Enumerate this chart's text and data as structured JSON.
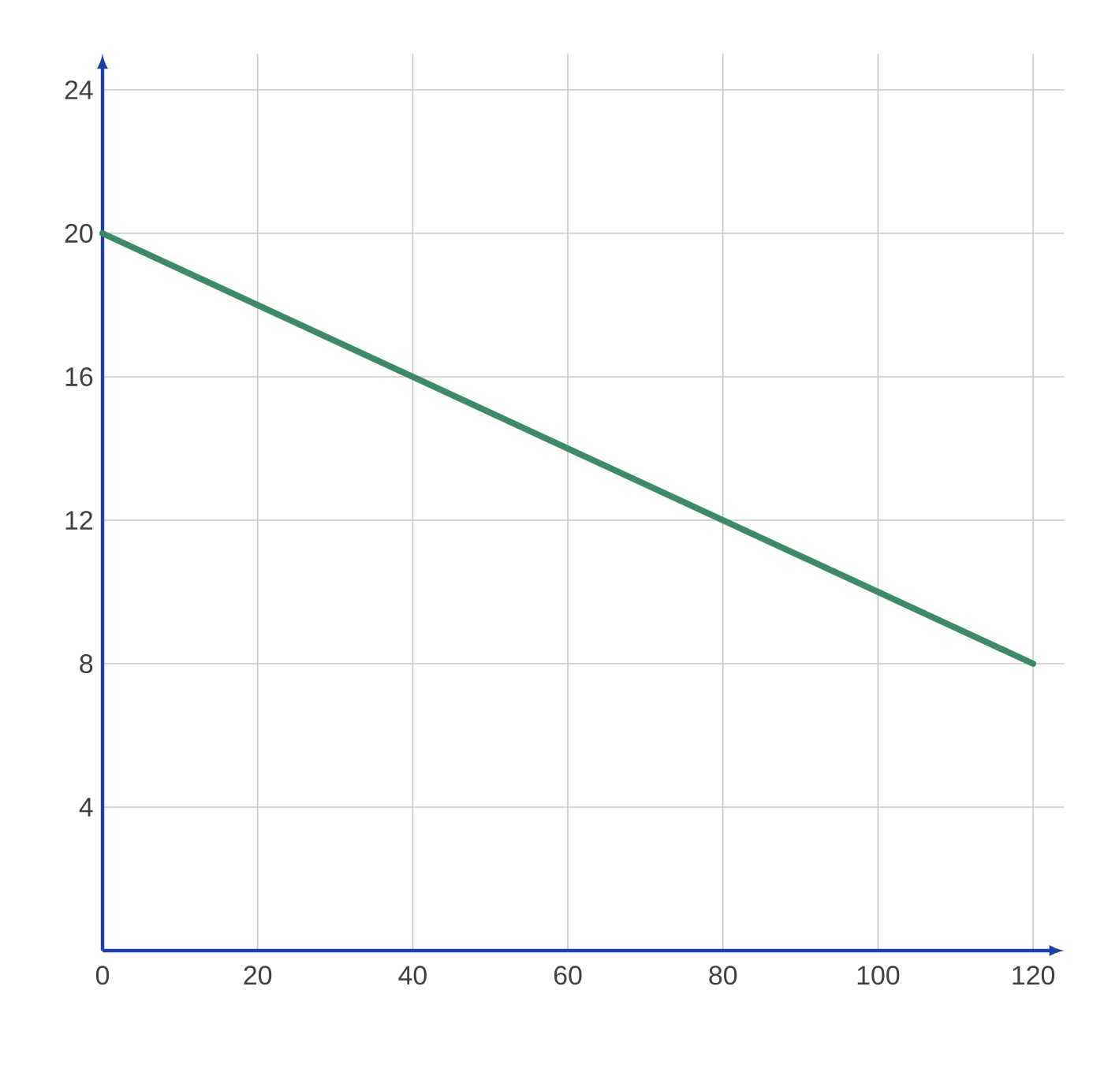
{
  "chart_data": {
    "type": "line",
    "x": [
      0,
      120
    ],
    "values": [
      20,
      8
    ],
    "color": "#3d8a68",
    "xlim": [
      0,
      124
    ],
    "ylim": [
      0,
      25
    ],
    "xticks": [
      0,
      20,
      40,
      60,
      80,
      100,
      120
    ],
    "yticks": [
      4,
      8,
      12,
      16,
      20,
      24
    ],
    "grid": true
  }
}
